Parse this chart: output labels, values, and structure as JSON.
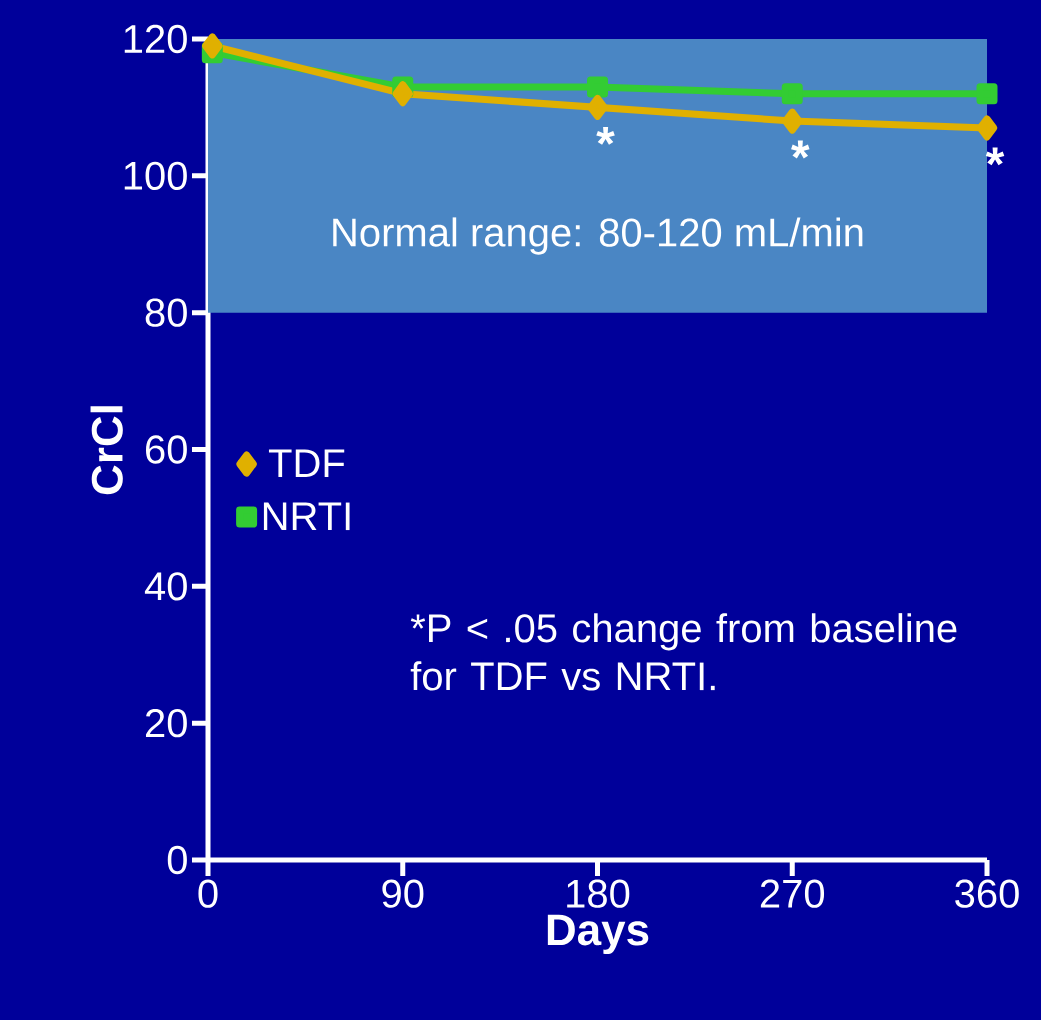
{
  "chart_data": {
    "type": "line",
    "x": [
      2,
      90,
      180,
      270,
      360
    ],
    "series": [
      {
        "name": "TDF",
        "color": "#e0b000",
        "marker": "diamond",
        "values": [
          119,
          112,
          110,
          108,
          107
        ]
      },
      {
        "name": "NRTI",
        "color": "#33cc33",
        "marker": "square",
        "values": [
          118,
          113,
          113,
          112,
          112
        ]
      }
    ],
    "xlabel": "Days",
    "ylabel": "CrCl",
    "xlim": [
      0,
      360
    ],
    "xticks": [
      0,
      90,
      180,
      270,
      360
    ],
    "ylim": [
      0,
      120
    ],
    "yticks": [
      0,
      20,
      40,
      60,
      80,
      100,
      120
    ],
    "bands": [
      {
        "axis": "y",
        "from": 80,
        "to": 120,
        "label": "Normal range: 80-120 mL/min",
        "color": "#4a86c4"
      }
    ],
    "annotations": [
      {
        "text": "*",
        "x": 180,
        "y": 110
      },
      {
        "text": "*",
        "x": 270,
        "y": 108
      },
      {
        "text": "*",
        "x": 360,
        "y": 107
      },
      "*P < .05 change from baseline for TDF vs NRTI."
    ],
    "legend": "left",
    "grid": false,
    "line_style": "solid"
  }
}
